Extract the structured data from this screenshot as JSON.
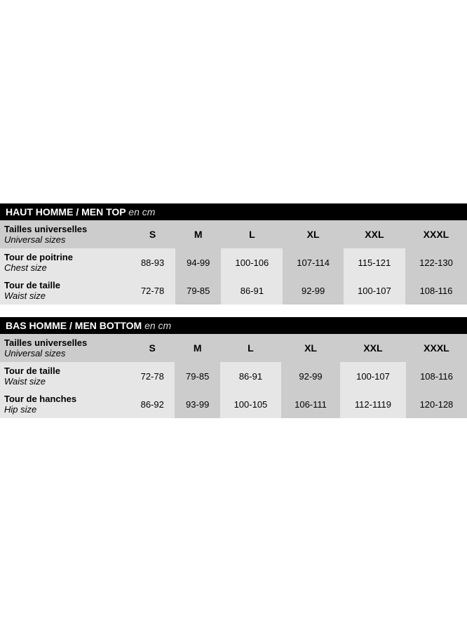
{
  "colors": {
    "title_bg": "#000000",
    "title_fg": "#ffffff",
    "shade_light": "#e6e6e6",
    "shade_dark": "#cccccc",
    "page_bg": "#ffffff"
  },
  "typography": {
    "base_family": "Arial",
    "base_fontsize": 13,
    "title_fontsize": 14,
    "header_fontsize": 14
  },
  "sizes": [
    "S",
    "M",
    "L",
    "XL",
    "XXL",
    "XXXL"
  ],
  "tables": [
    {
      "title_fr": "HAUT HOMME / MEN TOP",
      "unit": "en cm",
      "header_label_fr": "Tailles universelles",
      "header_label_en": "Universal sizes",
      "rows": [
        {
          "label_fr": "Tour de poitrine",
          "label_en": "Chest size",
          "values": [
            "88-93",
            "94-99",
            "100-106",
            "107-114",
            "115-121",
            "122-130"
          ]
        },
        {
          "label_fr": "Tour de taille",
          "label_en": "Waist  size",
          "values": [
            "72-78",
            "79-85",
            "86-91",
            "92-99",
            "100-107",
            "108-116"
          ]
        }
      ]
    },
    {
      "title_fr": "BAS HOMME / MEN BOTTOM",
      "unit": "en cm",
      "header_label_fr": "Tailles universelles",
      "header_label_en": "Universal sizes",
      "rows": [
        {
          "label_fr": "Tour de taille",
          "label_en": "Waist  size",
          "values": [
            "72-78",
            "79-85",
            "86-91",
            "92-99",
            "100-107",
            "108-116"
          ]
        },
        {
          "label_fr": "Tour de hanches",
          "label_en": "Hip  size",
          "values": [
            "86-92",
            "93-99",
            "100-105",
            "106-111",
            "112-1119",
            "120-128"
          ]
        }
      ]
    }
  ]
}
